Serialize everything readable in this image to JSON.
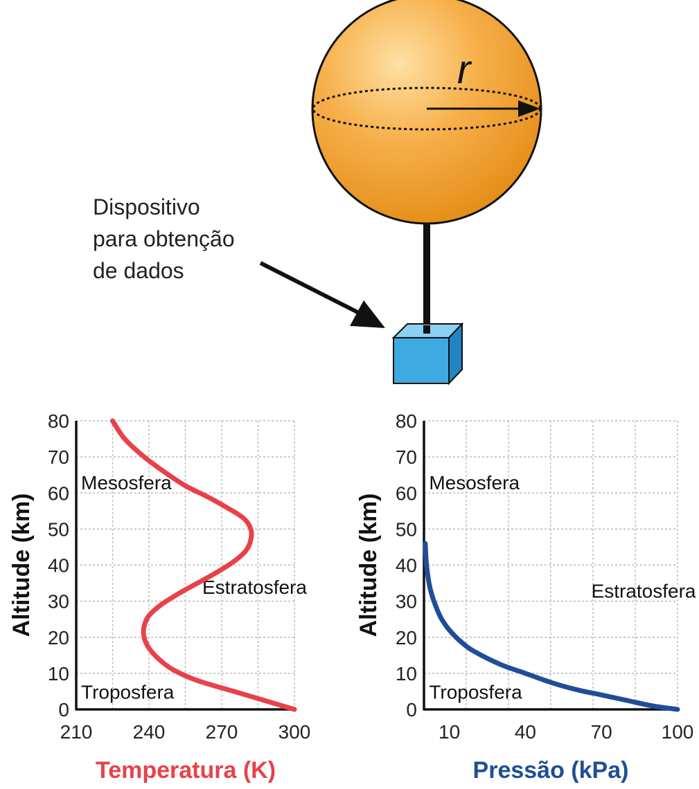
{
  "balloon": {
    "radius_label": "r",
    "device_label_lines": [
      "Dispositivo",
      "para obtenção",
      "de dados"
    ]
  },
  "colors": {
    "temperature": "#e8414a",
    "pressure": "#1f4e96",
    "balloon": "#f4a236",
    "device": "#3fa9e2"
  },
  "chart_data": [
    {
      "type": "line",
      "xlabel": "Temperatura (K)",
      "ylabel": "Altitude (km)",
      "xlim": [
        210,
        300
      ],
      "ylim": [
        0,
        80
      ],
      "x_ticks": [
        210,
        240,
        270,
        300
      ],
      "y_ticks": [
        0,
        10,
        20,
        30,
        40,
        50,
        60,
        70,
        80
      ],
      "grid": true,
      "regions": [
        {
          "label": "Mesosfera",
          "x": 212,
          "y": 61
        },
        {
          "label": "Estratosfera",
          "x": 262,
          "y": 32
        },
        {
          "label": "Troposfera",
          "x": 212,
          "y": 3
        }
      ],
      "series": [
        {
          "x": [
            300,
            290,
            275,
            260,
            250,
            244,
            240,
            238,
            238,
            240,
            245,
            252,
            260,
            268,
            275,
            280,
            282,
            282,
            279,
            272,
            264,
            255,
            246,
            238,
            230,
            225
          ],
          "y": [
            0,
            2,
            5,
            8,
            11,
            14,
            17,
            20,
            23,
            26,
            29,
            32,
            35,
            38,
            41,
            44,
            47,
            50,
            53,
            56,
            59,
            62,
            66,
            70,
            75,
            80
          ]
        }
      ]
    },
    {
      "type": "line",
      "xlabel": "Pressão (kPa)",
      "ylabel": "Altitude (km)",
      "xlim": [
        0,
        100
      ],
      "ylim": [
        0,
        80
      ],
      "x_ticks": [
        10,
        40,
        70,
        100
      ],
      "y_ticks": [
        0,
        10,
        20,
        30,
        40,
        50,
        60,
        70,
        80
      ],
      "grid": true,
      "regions": [
        {
          "label": "Mesosfera",
          "x": 2,
          "y": 61
        },
        {
          "label": "Estratosfera",
          "x": 66,
          "y": 31
        },
        {
          "label": "Troposfera",
          "x": 2,
          "y": 3
        }
      ],
      "series": [
        {
          "x": [
            100,
            90,
            80,
            70,
            60,
            50,
            40,
            30,
            20,
            15,
            10,
            7,
            5,
            3,
            2,
            1,
            0.5
          ],
          "y": [
            0,
            1,
            2.5,
            4,
            5.5,
            7.5,
            10,
            12.5,
            16,
            18.5,
            22,
            25,
            28,
            32,
            35,
            40,
            46
          ]
        }
      ]
    }
  ]
}
